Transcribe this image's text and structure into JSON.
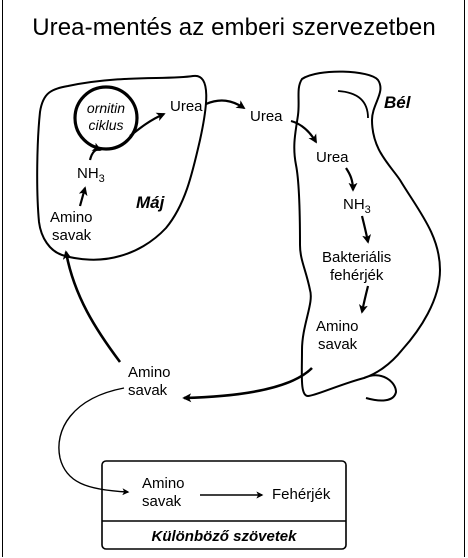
{
  "title": "Urea-mentés az emberi szervezetben",
  "liver": {
    "name": "Máj",
    "cycle_line1": "ornitin",
    "cycle_line2": "ciklus",
    "urea": "Urea",
    "nh3": "NH",
    "nh3_sub": "3",
    "amino_line1": "Amino",
    "amino_line2": "savak"
  },
  "blood": {
    "urea": "Urea",
    "amino_line1": "Amino",
    "amino_line2": "savak"
  },
  "gut": {
    "name": "Bél",
    "urea": "Urea",
    "nh3": "NH",
    "nh3_sub": "3",
    "bacterial_line1": "Bakteriális",
    "bacterial_line2": "fehérjék",
    "amino_line1": "Amino",
    "amino_line2": "savak"
  },
  "tissues": {
    "name": "Különböző szövetek",
    "amino_line1": "Amino",
    "amino_line2": "savak",
    "proteins": "Fehérjék"
  }
}
